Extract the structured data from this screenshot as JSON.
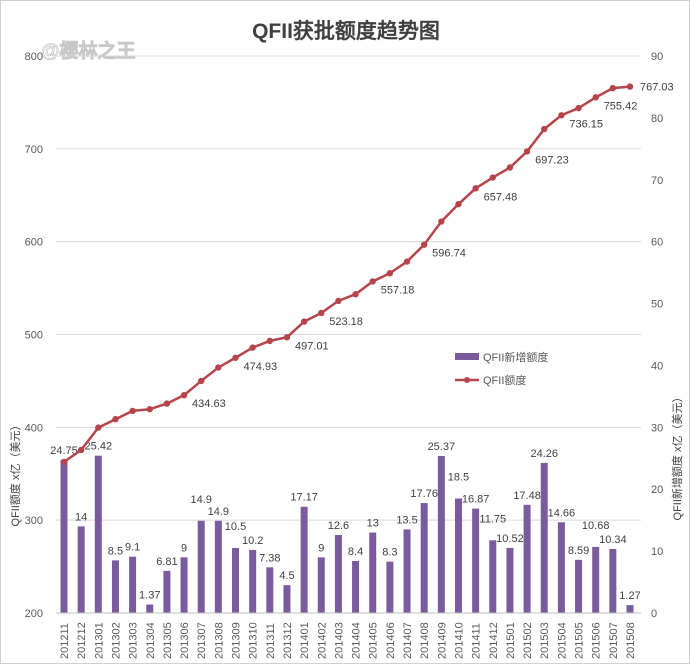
{
  "chart_data": {
    "type": "bar+line",
    "title": "QFII获批额度趋势图",
    "watermark": "@樱林之王",
    "ylabel_left": "QFII额度 x亿（美元）",
    "ylabel_right": "QFII新增额度 x亿（美元）",
    "ylim_left": [
      200,
      800
    ],
    "yticks_left": [
      200,
      300,
      400,
      500,
      600,
      700,
      800
    ],
    "ylim_right": [
      0,
      90
    ],
    "yticks_right": [
      0,
      10,
      20,
      30,
      40,
      50,
      60,
      70,
      80,
      90
    ],
    "grid": true,
    "legend_placement": "center-right",
    "colors": {
      "bar": "#7a5c9e",
      "line": "#b5454b",
      "grid": "#d9d9d9",
      "text": "#404040"
    },
    "categories": [
      "201211",
      "201212",
      "201301",
      "201302",
      "201303",
      "201304",
      "201305",
      "201306",
      "201307",
      "201308",
      "201309",
      "201310",
      "201311",
      "201312",
      "201401",
      "201402",
      "201403",
      "201404",
      "201405",
      "201406",
      "201407",
      "201408",
      "201409",
      "201410",
      "201411",
      "201412",
      "201501",
      "201502",
      "201503",
      "201504",
      "201505",
      "201506",
      "201507",
      "201508"
    ],
    "series": [
      {
        "name": "QFII新增额度",
        "type": "bar",
        "axis": "right",
        "values": [
          24.75,
          14,
          25.42,
          8.5,
          9.1,
          1.37,
          6.81,
          9,
          14.9,
          14.9,
          10.5,
          10.2,
          7.38,
          4.5,
          17.17,
          9,
          12.6,
          8.4,
          13,
          8.3,
          13.5,
          17.76,
          25.37,
          18.5,
          16.87,
          11.75,
          10.52,
          17.48,
          24.26,
          14.66,
          8.59,
          10.68,
          10.34,
          1.27
        ]
      },
      {
        "name": "QFII额度",
        "type": "line",
        "axis": "left",
        "values": [
          362.7,
          375.6,
          399.7,
          408.7,
          417.7,
          419.5,
          425.6,
          434.63,
          450,
          464.4,
          474.93,
          485.9,
          493.1,
          497.01,
          513.9,
          523.18,
          536.2,
          543.4,
          557.18,
          566,
          578.6,
          596.74,
          621.7,
          640.4,
          657.48,
          669.1,
          679.9,
          697.23,
          721.3,
          736.15,
          743.9,
          755.42,
          765.4,
          767.03
        ],
        "labels": [
          {
            "category": "201306",
            "text": "434.63"
          },
          {
            "category": "201309",
            "text": "474.93"
          },
          {
            "category": "201312",
            "text": "497.01"
          },
          {
            "category": "201402",
            "text": "523.18"
          },
          {
            "category": "201405",
            "text": "557.18"
          },
          {
            "category": "201408",
            "text": "596.74"
          },
          {
            "category": "201411",
            "text": "657.48"
          },
          {
            "category": "201502",
            "text": "697.23"
          },
          {
            "category": "201504",
            "text": "736.15"
          },
          {
            "category": "201506",
            "text": "755.42"
          },
          {
            "category": "201508",
            "text": "767.03"
          }
        ]
      }
    ]
  }
}
